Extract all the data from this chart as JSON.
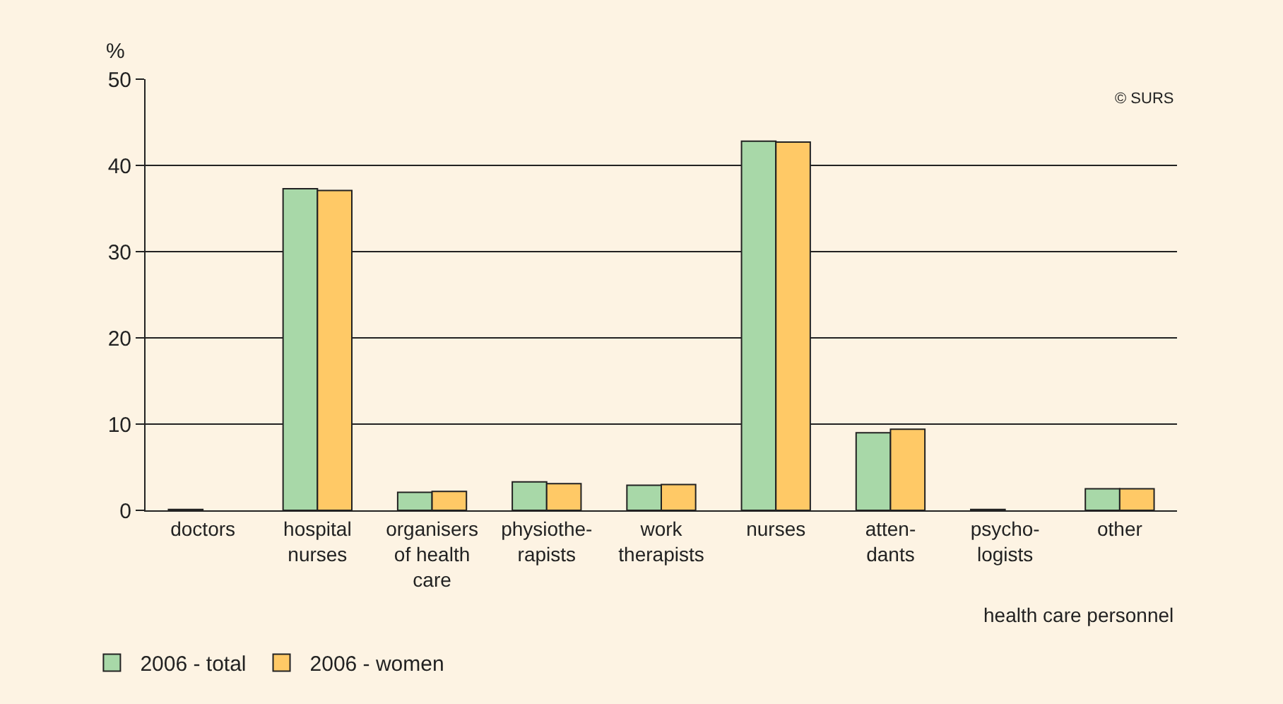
{
  "chart_data": {
    "type": "bar",
    "ylabel": "%",
    "xlabel": "health care personnel",
    "categories": [
      "doctors",
      "hospital\nnurses",
      "organisers\nof health\ncare",
      "physiothe-\nrapists",
      "work\ntherapists",
      "nurses",
      "atten-\ndants",
      "psycho-\nlogists",
      "other"
    ],
    "series": [
      {
        "name": "2006 - total",
        "color": "#a8d8a8",
        "values": [
          0.1,
          37.3,
          2.1,
          3.3,
          2.9,
          42.8,
          9.0,
          0.1,
          2.5
        ]
      },
      {
        "name": "2006 - women",
        "color": "#ffc966",
        "values": [
          null,
          37.1,
          2.2,
          3.1,
          3.0,
          42.7,
          9.4,
          null,
          2.5
        ]
      }
    ],
    "ylim": [
      0,
      50
    ],
    "yticks": [
      0,
      10,
      20,
      30,
      40,
      50
    ],
    "grid": "y",
    "legend": "bottom left",
    "annotations": [
      "© SURS"
    ]
  }
}
